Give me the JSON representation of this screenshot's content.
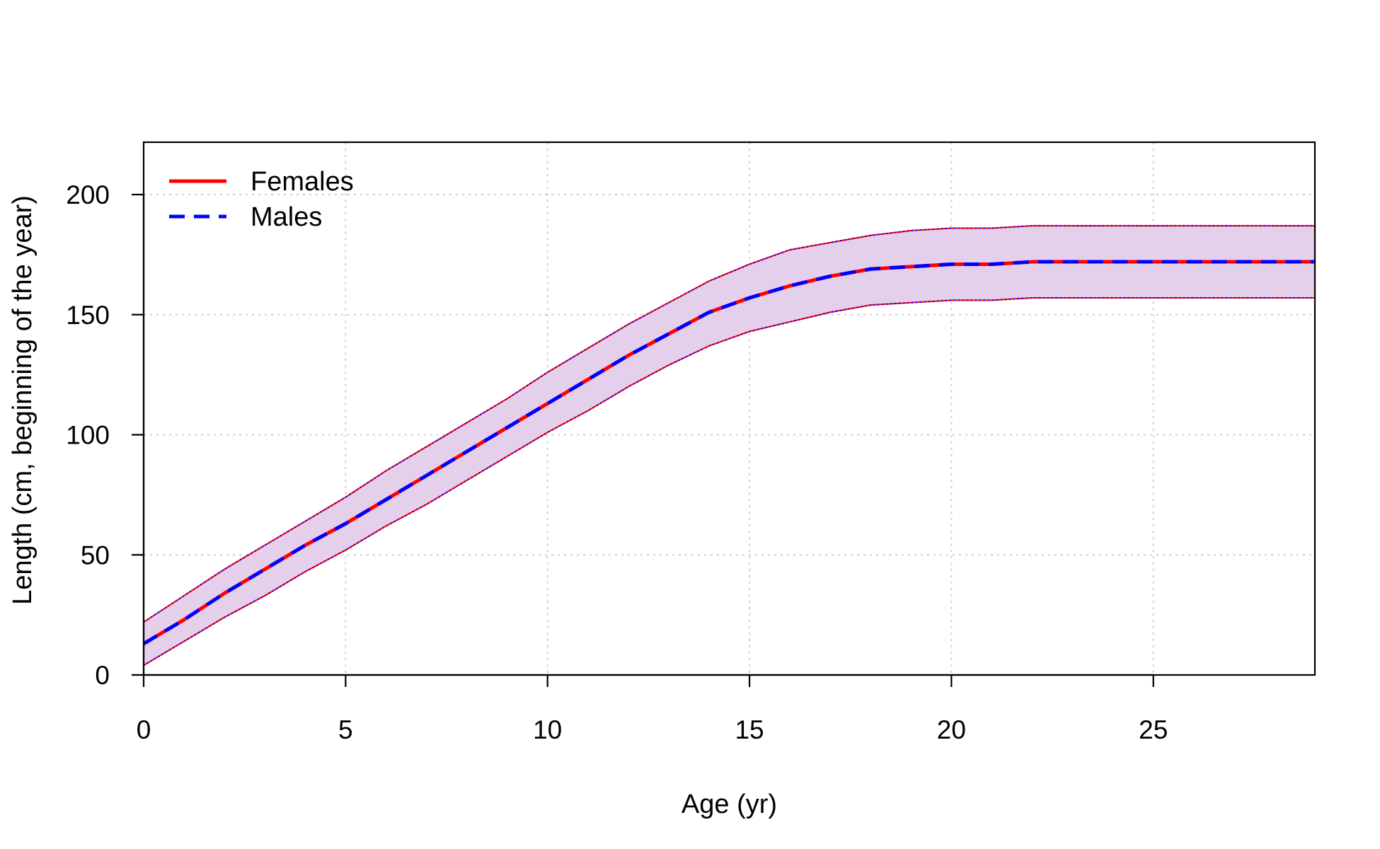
{
  "chart_data": {
    "type": "line",
    "title": "",
    "xlabel": "Age (yr)",
    "ylabel": "Length (cm, beginning of the year)",
    "xlim": [
      0,
      29
    ],
    "ylim": [
      0,
      200
    ],
    "xticks": [
      0,
      5,
      10,
      15,
      20,
      25
    ],
    "yticks": [
      0,
      50,
      100,
      150,
      200
    ],
    "grid": true,
    "legend_position": "top-left",
    "x": [
      0,
      1,
      2,
      3,
      4,
      5,
      6,
      7,
      8,
      9,
      10,
      11,
      12,
      13,
      14,
      15,
      16,
      17,
      18,
      19,
      20,
      21,
      22,
      23,
      24,
      25,
      26,
      27,
      28,
      29
    ],
    "series": [
      {
        "name": "Females",
        "color": "#FF0000",
        "line_style": "solid",
        "values": [
          13,
          23,
          34,
          44,
          54,
          63,
          73,
          83,
          93,
          103,
          113,
          123,
          133,
          142,
          151,
          157,
          162,
          166,
          169,
          170,
          171,
          171,
          172,
          172,
          172,
          172,
          172,
          172,
          172,
          172
        ]
      },
      {
        "name": "Males",
        "color": "#0000FF",
        "line_style": "dashed",
        "values": [
          13,
          23,
          34,
          44,
          54,
          63,
          73,
          83,
          93,
          103,
          113,
          123,
          133,
          142,
          151,
          157,
          162,
          166,
          169,
          170,
          171,
          171,
          172,
          172,
          172,
          172,
          172,
          172,
          172,
          172
        ]
      }
    ],
    "interval": {
      "fill_color": "#E4D0EA",
      "upper": [
        22,
        33,
        44,
        54,
        64,
        74,
        85,
        95,
        105,
        115,
        126,
        136,
        146,
        155,
        164,
        171,
        177,
        180,
        183,
        185,
        186,
        186,
        187,
        187,
        187,
        187,
        187,
        187,
        187,
        187
      ],
      "lower": [
        4,
        14,
        24,
        33,
        43,
        52,
        62,
        71,
        81,
        91,
        101,
        110,
        120,
        129,
        137,
        143,
        147,
        151,
        154,
        155,
        156,
        156,
        157,
        157,
        157,
        157,
        157,
        157,
        157,
        157
      ]
    }
  }
}
